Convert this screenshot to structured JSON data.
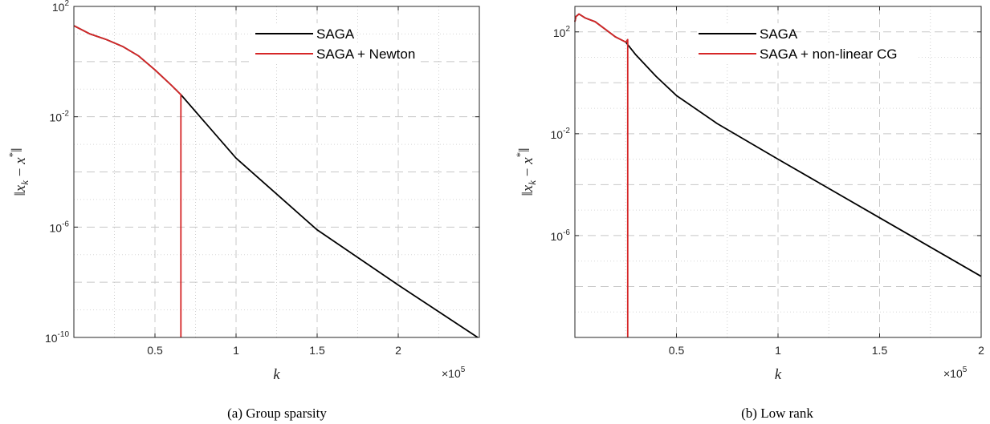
{
  "chart_data": [
    {
      "type": "line",
      "caption": "(a) Group sparsity",
      "xlabel": "k",
      "ylabel": "||x_k − x*||",
      "ylabel_parts": {
        "norm_open": "‖",
        "x": "x",
        "sub": "k",
        "minus": " − ",
        "xstar": "x",
        "star": "*",
        "norm_close": "‖"
      },
      "x_multiplier_base": "×10",
      "x_multiplier_exp": "5",
      "xlim": [
        0.0,
        2.5
      ],
      "ylog_range": [
        -10,
        2
      ],
      "y_scale": "log",
      "grid": true,
      "legend_position": "top-right",
      "x_ticks": [
        {
          "value": 0.5,
          "label": "0.5"
        },
        {
          "value": 1,
          "label": "1"
        },
        {
          "value": 1.5,
          "label": "1.5"
        },
        {
          "value": 2,
          "label": "2"
        }
      ],
      "y_ticks": [
        {
          "value": 2,
          "base": "10",
          "exp": "2"
        },
        {
          "value": -2,
          "base": "10",
          "exp": "-2"
        },
        {
          "value": -6,
          "base": "10",
          "exp": "-6"
        },
        {
          "value": -10,
          "base": "10",
          "exp": "-10"
        }
      ],
      "y_minor_grid": [
        0,
        -4,
        -8
      ],
      "series": [
        {
          "name": "SAGA",
          "color": "#000000",
          "x": [
            0.0,
            0.1,
            0.2,
            0.3,
            0.4,
            0.5,
            0.6,
            0.66,
            1.0,
            1.5,
            2.0,
            2.49
          ],
          "log10_y": [
            1.3,
            1.0,
            0.8,
            0.55,
            0.2,
            -0.3,
            -0.85,
            -1.2,
            -3.5,
            -6.1,
            -8.1,
            -10.0
          ]
        },
        {
          "name": "SAGA + Newton",
          "color": "#d62728",
          "x": [
            0.0,
            0.1,
            0.2,
            0.3,
            0.4,
            0.5,
            0.6,
            0.66,
            0.66
          ],
          "log10_y": [
            1.3,
            1.0,
            0.8,
            0.55,
            0.2,
            -0.3,
            -0.85,
            -1.2,
            -10.0
          ]
        }
      ]
    },
    {
      "type": "line",
      "caption": "(b) Low rank",
      "xlabel": "k",
      "ylabel": "||x_k − x*||",
      "ylabel_parts": {
        "norm_open": "‖",
        "x": "x",
        "sub": "k",
        "minus": " − ",
        "xstar": "x",
        "star": "*",
        "norm_close": "‖"
      },
      "x_multiplier_base": "×10",
      "x_multiplier_exp": "5",
      "xlim": [
        0.0,
        2.0
      ],
      "ylog_range": [
        -10,
        3.0
      ],
      "y_scale": "log",
      "grid": true,
      "legend_position": "top-right",
      "x_ticks": [
        {
          "value": 0.5,
          "label": "0.5"
        },
        {
          "value": 1,
          "label": "1"
        },
        {
          "value": 1.5,
          "label": "1.5"
        },
        {
          "value": 2,
          "label": "2"
        }
      ],
      "y_ticks": [
        {
          "value": 2,
          "base": "10",
          "exp": "2"
        },
        {
          "value": -2,
          "base": "10",
          "exp": "-2"
        },
        {
          "value": -6,
          "base": "10",
          "exp": "-6"
        }
      ],
      "y_minor_grid": [
        0,
        -4,
        -8
      ],
      "series": [
        {
          "name": "SAGA",
          "color": "#000000",
          "x": [
            0.0,
            0.005,
            0.02,
            0.05,
            0.1,
            0.15,
            0.2,
            0.25,
            0.3,
            0.4,
            0.5,
            0.7,
            1.0,
            1.5,
            2.0
          ],
          "log10_y": [
            2.4,
            2.6,
            2.7,
            2.55,
            2.4,
            2.1,
            1.8,
            1.6,
            1.1,
            0.25,
            -0.5,
            -1.6,
            -3.0,
            -5.3,
            -7.6
          ]
        },
        {
          "name": "SAGA + non-linear CG",
          "color": "#d62728",
          "x": [
            0.0,
            0.005,
            0.02,
            0.05,
            0.1,
            0.15,
            0.2,
            0.25,
            0.26,
            0.26
          ],
          "log10_y": [
            2.4,
            2.6,
            2.7,
            2.55,
            2.4,
            2.1,
            1.8,
            1.6,
            1.7,
            -10.0
          ]
        }
      ]
    }
  ]
}
